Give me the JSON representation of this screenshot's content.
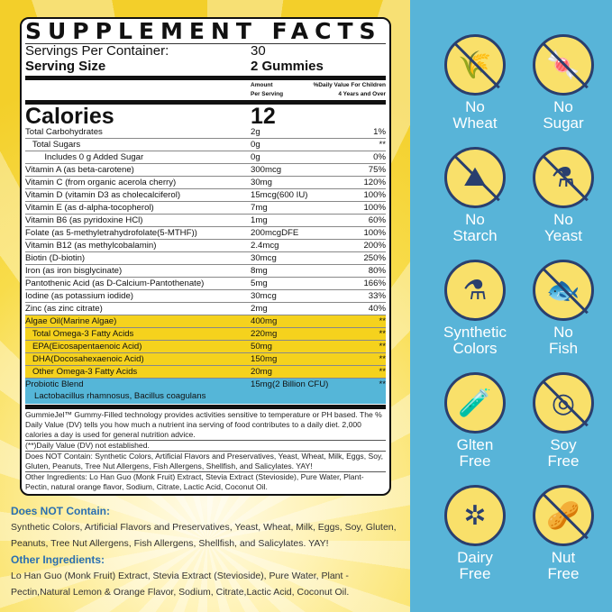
{
  "title": "SUPPLEMENT FACTS",
  "servings": {
    "label": "Servings Per Container:",
    "value": "30"
  },
  "serving_size": {
    "label": "Serving Size",
    "value": "2  Gummies"
  },
  "header": {
    "amount": "Amount",
    "per_serving": "Per Serving",
    "dv": "%Daily Value For Children",
    "dv2": "4 Years and Over"
  },
  "calories": {
    "label": "Calories",
    "value": "12"
  },
  "rows": [
    [
      "Total Carbohydrates",
      "2g",
      "1%",
      ""
    ],
    [
      "   Total Sugars",
      "0g",
      "**",
      ""
    ],
    [
      "        Includes 0 g Added Sugar",
      "0g",
      "0%",
      ""
    ],
    [
      "Vitamin A (as beta-carotene)",
      "300mcg",
      "75%",
      ""
    ],
    [
      "Vitamin C (from organic acerola cherry)",
      "30mg",
      "120%",
      ""
    ],
    [
      "Vitamin D (vitamin D3 as cholecalciferol)",
      "15mcg(600 IU)",
      "100%",
      ""
    ],
    [
      "Vitamin E (as d-alpha-tocopherol)",
      "7mg",
      "100%",
      ""
    ],
    [
      "Vitamin B6 (as pyridoxine HCl)",
      "1mg",
      "60%",
      ""
    ],
    [
      "Folate (as 5-methyletrahydrofolate(5-MTHF))",
      "200mcgDFE",
      "100%",
      ""
    ],
    [
      "Vitamin B12 (as methylcobalamin)",
      "2.4mcg",
      "200%",
      ""
    ],
    [
      "Biotin (D-biotin)",
      "30mcg",
      "250%",
      ""
    ],
    [
      "Iron (as iron bisglycinate)",
      "8mg",
      "80%",
      ""
    ],
    [
      "Pantothenic Acid (as D-Calcium-Pantothenate)",
      "5mg",
      "166%",
      ""
    ],
    [
      "Iodine (as potassium iodide)",
      "30mcg",
      "33%",
      ""
    ],
    [
      "Zinc (as zinc citrate)",
      "2mg",
      "40%",
      ""
    ],
    [
      "Algae Oil(Marine Algae)",
      "400mg",
      "**",
      "y"
    ],
    [
      "   Total Omega-3 Fatty Acids",
      "220mg",
      "**",
      "y"
    ],
    [
      "   EPA(Eicosapentaenoic Acid)",
      "50mg",
      "**",
      "y"
    ],
    [
      "   DHA(Docosahexaenoic Acid)",
      "150mg",
      "**",
      "y"
    ],
    [
      "   Other Omega-3 Fatty Acids",
      "20mg",
      "**",
      "y"
    ],
    [
      "Probiotic Blend",
      "15mg(2 Billion CFU)",
      "**",
      "b"
    ]
  ],
  "probiotic_strains": "Lactobacillus rhamnosus, Bacillus coagulans",
  "notes": [
    "GummieJel™ Gummy-Filled technology provides activities sensitive to temperature or PH based. The % Daily Value (DV) tells you how much a nutrient ina serving of food contributes to a daily diet. 2,000 calories a day is used for general nutrition advice.",
    "(**)Daily Value (DV) not established.",
    "Does NOT Contain: Synthetic Colors, Artificial Flavors and Preservatives, Yeast, Wheat, Milk, Eggs, Soy, Gluten, Peanuts, Tree Nut Allergens, Fish Allergens, Shellfish, and Salicylates. YAY!",
    "Other Ingredients: Lo Han Guo (Monk Fruit) Extract, Stevia Extract (Stevioside), Pure Water, Plant-Pectin, natural orange flavor, Sodium, Citrate, Lactic Acid, Coconut Oil."
  ],
  "below": {
    "not_contain_heading": "Does NOT Contain:",
    "not_contain_text": "Synthetic Colors, Artificial Flavors and Preservatives, Yeast, Wheat, Milk, Eggs, Soy, Gluten, Peanuts, Tree Nut Allergens, Fish Allergens, Shellfish, and Salicylates. YAY!",
    "other_heading": "Other Ingredients:",
    "other_text": "Lo Han Guo (Monk Fruit) Extract, Stevia Extract (Stevioside), Pure Water, Plant - Pectin,Natural Lemon & Orange Flavor,  Sodium,  Citrate,Lactic Acid, Coconut Oil."
  },
  "badges": [
    {
      "label": "No Wheat",
      "icon": "wheat-icon",
      "glyph": "🌾",
      "x": true
    },
    {
      "label": "No Sugar",
      "icon": "candy-icon",
      "glyph": "🍬",
      "x": true
    },
    {
      "label": "No Starch",
      "icon": "starch-icon",
      "glyph": "⛰",
      "x": true
    },
    {
      "label": "No Yeast",
      "icon": "flask-icon",
      "glyph": "⚗",
      "x": true
    },
    {
      "label": "Synthetic Colors",
      "icon": "beaker-icon",
      "glyph": "⚗",
      "x": false
    },
    {
      "label": "No Fish",
      "icon": "fish-icon",
      "glyph": "🐟",
      "x": true
    },
    {
      "label": "Glten Free",
      "icon": "test-tube-icon",
      "glyph": "🧪",
      "x": false
    },
    {
      "label": "Soy Free",
      "icon": "soybean-icon",
      "glyph": "◎",
      "x": true
    },
    {
      "label": "Dairy Free",
      "icon": "molecule-icon",
      "glyph": "✲",
      "x": false
    },
    {
      "label": "Nut Free",
      "icon": "nut-icon",
      "glyph": "🥜",
      "x": true
    }
  ],
  "colors": {
    "panel": "#58b4d8",
    "yellow": "#f5d21d",
    "blue_row": "#55b6d8",
    "badge_circle": "#f9e06a",
    "badge_stroke": "#2a3f6e"
  }
}
